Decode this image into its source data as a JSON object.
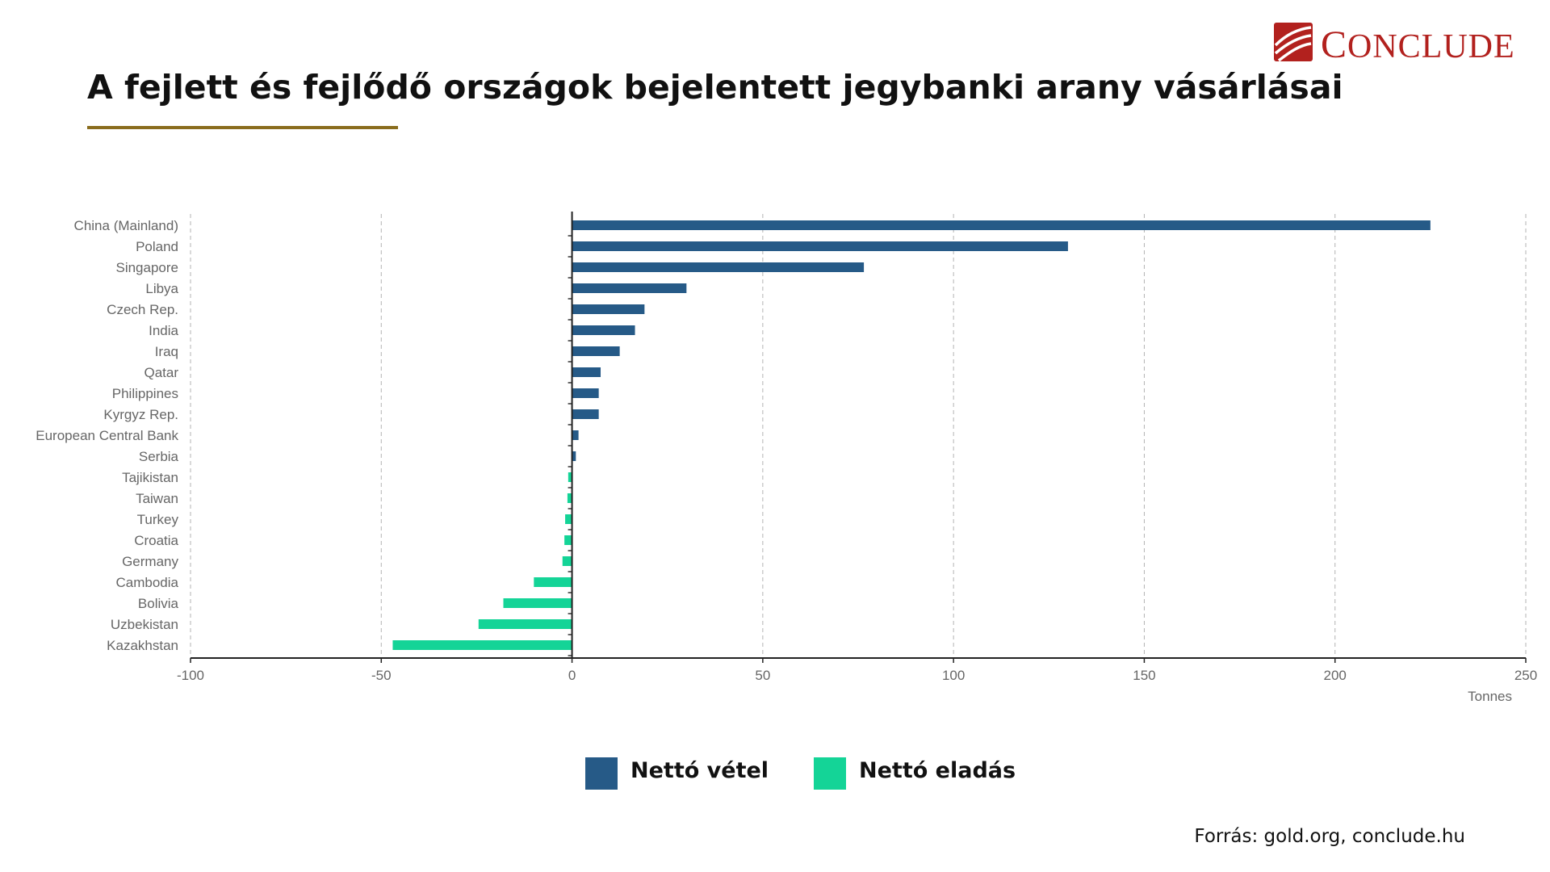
{
  "header": {
    "title": "A fejlett és fejlődő országok bejelentett jegybanki arany vásárlásai"
  },
  "logo": {
    "first_letter": "C",
    "rest": "ONCLUDE"
  },
  "colors": {
    "buy": "#265a87",
    "sell": "#14d497",
    "rule": "#8a6d1e",
    "brand": "#b2211e"
  },
  "legend": {
    "items": [
      {
        "label": "Nettó vétel",
        "color": "#265a87"
      },
      {
        "label": "Nettó eladás",
        "color": "#14d497"
      }
    ]
  },
  "source": {
    "text": "Forrás: gold.org, conclude.hu"
  },
  "chart_data": {
    "type": "bar",
    "orientation": "horizontal",
    "categories": [
      "China (Mainland)",
      "Poland",
      "Singapore",
      "Libya",
      "Czech Rep.",
      "India",
      "Iraq",
      "Qatar",
      "Philippines",
      "Kyrgyz Rep.",
      "European Central Bank",
      "Serbia",
      "Tajikistan",
      "Taiwan",
      "Turkey",
      "Croatia",
      "Germany",
      "Cambodia",
      "Bolivia",
      "Uzbekistan",
      "Kazakhstan"
    ],
    "values": [
      225,
      130,
      76.5,
      30,
      19,
      16.5,
      12.5,
      7.5,
      7,
      7,
      1.7,
      1,
      -1,
      -1.2,
      -1.8,
      -2,
      -2.5,
      -10,
      -18,
      -24.5,
      -47
    ],
    "xlabel": "Tonnes",
    "xlim": [
      -100,
      250
    ],
    "xticks": [
      -100,
      -50,
      0,
      50,
      100,
      150,
      200,
      250
    ],
    "xtick_labels": [
      "-100",
      "-50",
      "0",
      "50",
      "100",
      "150",
      "200",
      "250"
    ],
    "grid": "vertical-dashed",
    "legend": "bottom-center"
  }
}
